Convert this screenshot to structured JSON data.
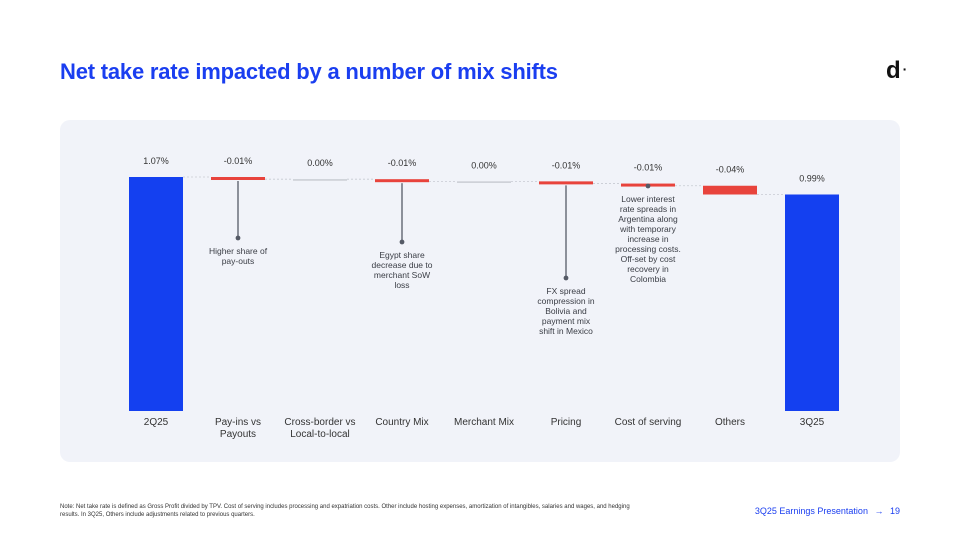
{
  "slide": {
    "title": "Net take rate impacted by a number of mix shifts",
    "logo": "d",
    "note": "Note: Net take rate is defined as Gross Profit divided by TPV. Cost of serving includes processing and expatriation costs. Other include hosting expenses, amortization of intangibles, salaries and wages, and hedging results. In 3Q25, Others include adjustments related to previous quarters.",
    "footer_label": "3Q25 Earnings Presentation",
    "footer_arrow": "→",
    "page_number": "19"
  },
  "colors": {
    "accent": "#1a3ef0",
    "total_bar": "#1440f0",
    "negative": "#e8433c",
    "zero": "#c9ccd3",
    "annotation_line": "#555a66"
  },
  "chart_data": {
    "type": "waterfall",
    "title": "",
    "unit": "%",
    "categories": [
      "2Q25",
      "Pay-ins vs\nPayouts",
      "Cross-border vs\nLocal-to-local",
      "Country Mix",
      "Merchant Mix",
      "Pricing",
      "Cost of serving",
      "Others",
      "3Q25"
    ],
    "values": [
      1.07,
      -0.01,
      0.0,
      -0.01,
      0.0,
      -0.01,
      -0.01,
      -0.04,
      0.99
    ],
    "value_labels": [
      "1.07%",
      "-0.01%",
      "0.00%",
      "-0.01%",
      "0.00%",
      "-0.01%",
      "-0.01%",
      "-0.04%",
      "0.99%"
    ],
    "kinds": [
      "total",
      "delta",
      "delta",
      "delta",
      "delta",
      "delta",
      "delta",
      "delta",
      "total"
    ],
    "annotations": [
      {
        "category_index": 1,
        "text": "Higher share of pay-outs"
      },
      {
        "category_index": 3,
        "text": "Egypt share decrease due to merchant SoW loss"
      },
      {
        "category_index": 5,
        "text": "FX spread compression in Bolivia and payment mix shift in Mexico"
      },
      {
        "category_index": 6,
        "text": "Lower interest rate spreads in Argentina along with temporary increase in processing costs. Off-set by cost recovery in Colombia"
      }
    ],
    "ylim": [
      0,
      1.07
    ]
  }
}
